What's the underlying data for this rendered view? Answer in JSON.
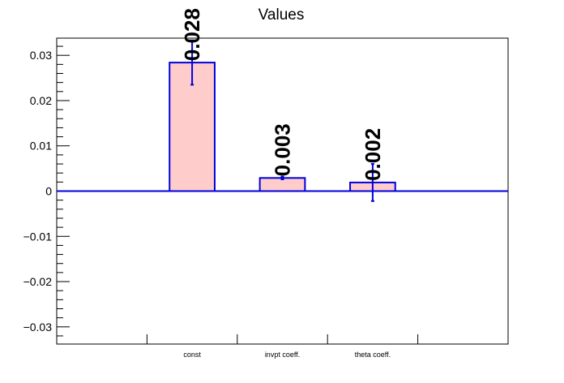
{
  "chart_data": {
    "type": "bar",
    "title": "Values",
    "xlabel": "",
    "ylabel": "",
    "categories": [
      "const",
      "invpt coeff.",
      "theta coeff."
    ],
    "values": [
      0.0284,
      0.0029,
      0.0019
    ],
    "errors": [
      0.0049,
      0.0003,
      0.0041
    ],
    "data_labels": [
      "0.028",
      "0.003",
      "0.002"
    ],
    "ylim": [
      -0.0338,
      0.0338
    ],
    "yticks": [
      -0.03,
      -0.02,
      -0.01,
      0,
      0.01,
      0.02,
      0.03
    ],
    "ytick_labels": [
      "−0.03",
      "−0.02",
      "−0.01",
      "0",
      "0.01",
      "0.02",
      "0.03"
    ],
    "colors": {
      "bar_fill": "#ffcccc",
      "bar_stroke": "#0000dd",
      "error": "#0000dd",
      "zero_line": "#0000dd",
      "axis": "#000000"
    },
    "grid": false,
    "legend": "none"
  }
}
